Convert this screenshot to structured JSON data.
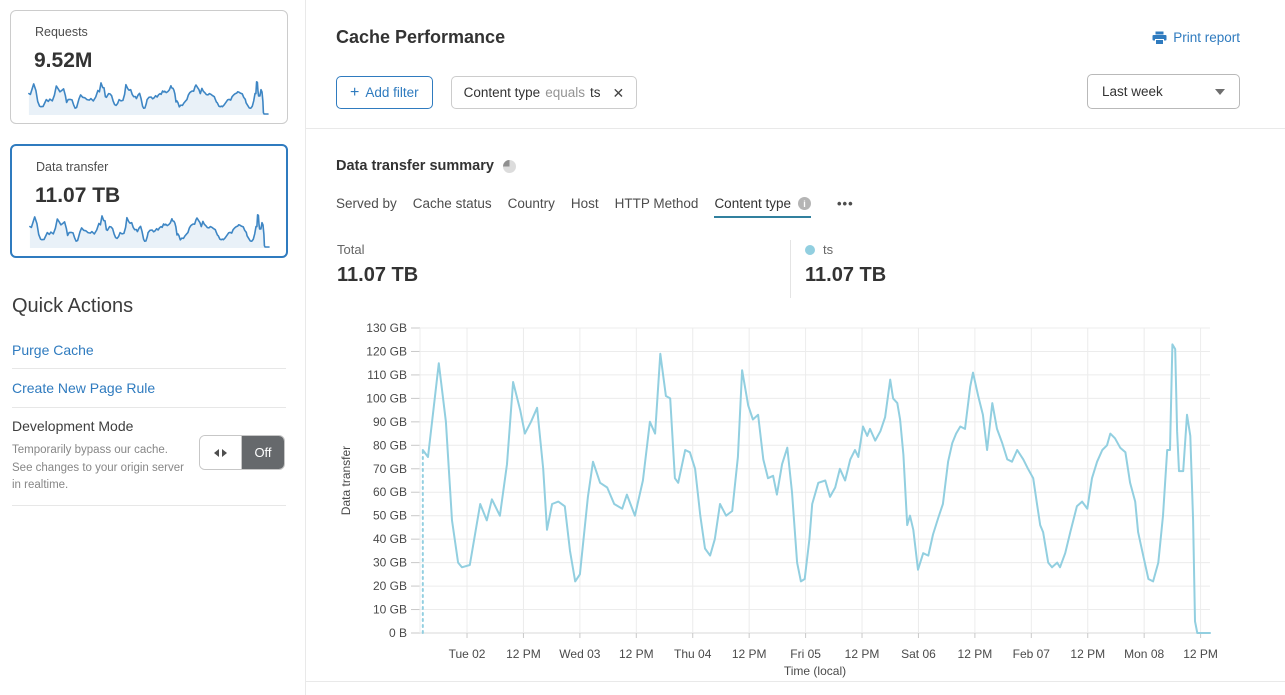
{
  "sidebar": {
    "cards": [
      {
        "label": "Requests",
        "value": "9.52M",
        "selected": false
      },
      {
        "label": "Data transfer",
        "value": "11.07 TB",
        "selected": true
      }
    ],
    "sparkline": {
      "line_color": "#3e86c4",
      "fill_color": "#e9f1f8"
    },
    "quick_actions": {
      "title": "Quick Actions",
      "links": [
        {
          "label": "Purge Cache"
        },
        {
          "label": "Create New Page Rule"
        }
      ],
      "dev_mode": {
        "label": "Development Mode",
        "description": "Temporarily bypass our cache. See changes to your origin server in realtime.",
        "toggle_state": "Off"
      }
    }
  },
  "header": {
    "title": "Cache Performance",
    "print_label": "Print report",
    "add_filter_label": "Add filter",
    "add_filter_plus": "+",
    "filter_chip": {
      "field": "Content type",
      "operator": "equals",
      "value": "ts",
      "close": "✕"
    },
    "time_range": "Last week"
  },
  "summary": {
    "title": "Data transfer summary",
    "tabs": [
      {
        "label": "Served by",
        "active": false
      },
      {
        "label": "Cache status",
        "active": false
      },
      {
        "label": "Country",
        "active": false
      },
      {
        "label": "Host",
        "active": false
      },
      {
        "label": "HTTP Method",
        "active": false
      },
      {
        "label": "Content type",
        "active": true,
        "has_info": true
      }
    ],
    "info_glyph": "i",
    "more_label": "•••",
    "total": {
      "label": "Total",
      "value": "11.07 TB"
    },
    "legend": {
      "label": "ts",
      "value": "11.07 TB",
      "color": "#92cfe0"
    }
  },
  "colors": {
    "accent_blue": "#2f7bbf",
    "active_tab_underline": "#31809e",
    "chart_line": "#92cfe0",
    "grid": "#ececec",
    "axis_line": "#d8d8d8",
    "tick_text": "#4a4a4a"
  },
  "chart_data": {
    "type": "line",
    "title": "Data transfer summary",
    "xlabel": "Time (local)",
    "ylabel": "Data transfer",
    "x_unit": "hours-into-week",
    "x_range": [
      0,
      168
    ],
    "ylim": [
      0,
      130
    ],
    "grid": true,
    "y_ticks": [
      {
        "value": 0,
        "label": "0 B"
      },
      {
        "value": 10,
        "label": "10 GB"
      },
      {
        "value": 20,
        "label": "20 GB"
      },
      {
        "value": 30,
        "label": "30 GB"
      },
      {
        "value": 40,
        "label": "40 GB"
      },
      {
        "value": 50,
        "label": "50 GB"
      },
      {
        "value": 60,
        "label": "60 GB"
      },
      {
        "value": 70,
        "label": "70 GB"
      },
      {
        "value": 80,
        "label": "80 GB"
      },
      {
        "value": 90,
        "label": "90 GB"
      },
      {
        "value": 100,
        "label": "100 GB"
      },
      {
        "value": 110,
        "label": "110 GB"
      },
      {
        "value": 120,
        "label": "120 GB"
      },
      {
        "value": 130,
        "label": "130 GB"
      }
    ],
    "x_ticks": [
      {
        "hour": 10,
        "label": "Tue 02"
      },
      {
        "hour": 22,
        "label": "12 PM"
      },
      {
        "hour": 34,
        "label": "Wed 03"
      },
      {
        "hour": 46,
        "label": "12 PM"
      },
      {
        "hour": 58,
        "label": "Thu 04"
      },
      {
        "hour": 70,
        "label": "12 PM"
      },
      {
        "hour": 82,
        "label": "Fri 05"
      },
      {
        "hour": 94,
        "label": "12 PM"
      },
      {
        "hour": 106,
        "label": "Sat 06"
      },
      {
        "hour": 118,
        "label": "12 PM"
      },
      {
        "hour": 130,
        "label": "Feb 07"
      },
      {
        "hour": 142,
        "label": "12 PM"
      },
      {
        "hour": 154,
        "label": "Mon 08"
      },
      {
        "hour": 166,
        "label": "12 PM"
      }
    ],
    "series": [
      {
        "name": "ts",
        "unit": "GB",
        "color": "#92cfe0",
        "start_dashed_from_zero": true,
        "points": [
          [
            0.6,
            78
          ],
          [
            1.7,
            75
          ],
          [
            4.0,
            115
          ],
          [
            5.5,
            90
          ],
          [
            6.8,
            48
          ],
          [
            8.1,
            30
          ],
          [
            8.9,
            28
          ],
          [
            10.6,
            29
          ],
          [
            12.8,
            55
          ],
          [
            14.2,
            48
          ],
          [
            15.3,
            57
          ],
          [
            17.0,
            50
          ],
          [
            18.5,
            72
          ],
          [
            19.8,
            107
          ],
          [
            21.3,
            95
          ],
          [
            22.3,
            85
          ],
          [
            23.6,
            90
          ],
          [
            24.9,
            96
          ],
          [
            26.2,
            70
          ],
          [
            27.0,
            44
          ],
          [
            28.1,
            55
          ],
          [
            29.4,
            56
          ],
          [
            30.8,
            54
          ],
          [
            31.9,
            35
          ],
          [
            33.0,
            22
          ],
          [
            34.0,
            25
          ],
          [
            35.7,
            58
          ],
          [
            36.8,
            73
          ],
          [
            38.3,
            64
          ],
          [
            39.8,
            62
          ],
          [
            41.3,
            55
          ],
          [
            43.0,
            53
          ],
          [
            44.0,
            59
          ],
          [
            45.7,
            50
          ],
          [
            47.4,
            65
          ],
          [
            48.9,
            90
          ],
          [
            50.0,
            85
          ],
          [
            51.1,
            119
          ],
          [
            52.3,
            101
          ],
          [
            53.2,
            100
          ],
          [
            54.2,
            66
          ],
          [
            54.9,
            64
          ],
          [
            56.4,
            78
          ],
          [
            57.4,
            77
          ],
          [
            58.5,
            70
          ],
          [
            59.6,
            50
          ],
          [
            60.6,
            36
          ],
          [
            61.7,
            33
          ],
          [
            62.7,
            40
          ],
          [
            63.8,
            55
          ],
          [
            65.1,
            50
          ],
          [
            66.4,
            52
          ],
          [
            67.6,
            75
          ],
          [
            68.5,
            112
          ],
          [
            69.8,
            97
          ],
          [
            70.8,
            91
          ],
          [
            71.9,
            93
          ],
          [
            73.0,
            74
          ],
          [
            74.0,
            66
          ],
          [
            75.1,
            67
          ],
          [
            75.9,
            59
          ],
          [
            77.0,
            72
          ],
          [
            78.1,
            79
          ],
          [
            79.1,
            60
          ],
          [
            80.2,
            30
          ],
          [
            81.0,
            22
          ],
          [
            81.8,
            23
          ],
          [
            82.8,
            40
          ],
          [
            83.4,
            55
          ],
          [
            84.7,
            64
          ],
          [
            86.2,
            65
          ],
          [
            87.2,
            58
          ],
          [
            88.3,
            62
          ],
          [
            89.3,
            70
          ],
          [
            90.4,
            65
          ],
          [
            91.5,
            74
          ],
          [
            92.5,
            78
          ],
          [
            93.2,
            75
          ],
          [
            94.2,
            88
          ],
          [
            95.1,
            84
          ],
          [
            95.7,
            87
          ],
          [
            96.8,
            82
          ],
          [
            97.9,
            86
          ],
          [
            98.9,
            92
          ],
          [
            100.0,
            108
          ],
          [
            100.6,
            100
          ],
          [
            101.5,
            98
          ],
          [
            102.1,
            91
          ],
          [
            102.8,
            76
          ],
          [
            103.6,
            46
          ],
          [
            104.2,
            50
          ],
          [
            104.9,
            44
          ],
          [
            105.9,
            27
          ],
          [
            107.0,
            34
          ],
          [
            108.1,
            33
          ],
          [
            109.1,
            42
          ],
          [
            110.2,
            49
          ],
          [
            111.2,
            55
          ],
          [
            112.3,
            73
          ],
          [
            113.2,
            81
          ],
          [
            114.0,
            85
          ],
          [
            114.9,
            88
          ],
          [
            115.9,
            87
          ],
          [
            117.0,
            105
          ],
          [
            117.6,
            111
          ],
          [
            118.7,
            101
          ],
          [
            119.7,
            93
          ],
          [
            120.6,
            78
          ],
          [
            121.7,
            98
          ],
          [
            122.7,
            87
          ],
          [
            123.8,
            81
          ],
          [
            124.9,
            74
          ],
          [
            125.9,
            73
          ],
          [
            127.0,
            78
          ],
          [
            128.3,
            74
          ],
          [
            129.3,
            70
          ],
          [
            130.4,
            66
          ],
          [
            131.2,
            55
          ],
          [
            131.9,
            46
          ],
          [
            132.5,
            43
          ],
          [
            133.6,
            30
          ],
          [
            134.4,
            28
          ],
          [
            135.5,
            30
          ],
          [
            136.1,
            28
          ],
          [
            137.2,
            34
          ],
          [
            138.3,
            43
          ],
          [
            139.7,
            54
          ],
          [
            140.8,
            56
          ],
          [
            141.9,
            53
          ],
          [
            142.9,
            66
          ],
          [
            144.0,
            73
          ],
          [
            145.1,
            78
          ],
          [
            146.1,
            80
          ],
          [
            146.8,
            85
          ],
          [
            147.8,
            83
          ],
          [
            148.9,
            79
          ],
          [
            150.0,
            77
          ],
          [
            151.0,
            64
          ],
          [
            152.1,
            56
          ],
          [
            152.7,
            43
          ],
          [
            153.8,
            33
          ],
          [
            154.9,
            23
          ],
          [
            155.9,
            22
          ],
          [
            157.0,
            30
          ],
          [
            158.0,
            50
          ],
          [
            158.9,
            78
          ],
          [
            159.5,
            78
          ],
          [
            160.0,
            123
          ],
          [
            160.6,
            121
          ],
          [
            161.0,
            86
          ],
          [
            161.4,
            69
          ],
          [
            162.3,
            69
          ],
          [
            163.1,
            93
          ],
          [
            163.8,
            84
          ],
          [
            164.4,
            48
          ],
          [
            164.8,
            5
          ],
          [
            165.3,
            0
          ],
          [
            167.0,
            0
          ],
          [
            168.0,
            0
          ]
        ]
      }
    ]
  }
}
